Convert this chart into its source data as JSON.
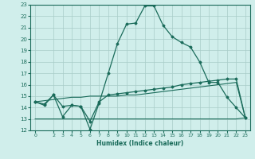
{
  "bg_color": "#d0eeeb",
  "grid_color": "#a8ccc8",
  "line_color": "#1a6b5a",
  "xlabel": "Humidex (Indice chaleur)",
  "xlim": [
    -0.5,
    23.5
  ],
  "ylim": [
    12,
    23
  ],
  "yticks": [
    12,
    13,
    14,
    15,
    16,
    17,
    18,
    19,
    20,
    21,
    22,
    23
  ],
  "xticks": [
    0,
    2,
    3,
    4,
    5,
    6,
    7,
    8,
    9,
    10,
    11,
    12,
    13,
    14,
    15,
    16,
    17,
    18,
    19,
    20,
    21,
    22,
    23
  ],
  "curve1_x": [
    0,
    1,
    2,
    3,
    4,
    5,
    6,
    7,
    8,
    9,
    10,
    11,
    12,
    13,
    14,
    15,
    16,
    17,
    18,
    19,
    20,
    21,
    22,
    23
  ],
  "curve1_y": [
    14.5,
    14.2,
    15.1,
    13.2,
    14.2,
    14.1,
    12.1,
    14.4,
    17.0,
    19.6,
    21.3,
    21.4,
    22.9,
    22.9,
    21.2,
    20.2,
    19.7,
    19.3,
    18.0,
    16.2,
    16.2,
    14.9,
    14.0,
    13.1
  ],
  "curve2_x": [
    0,
    1,
    2,
    3,
    4,
    5,
    6,
    7,
    8,
    9,
    10,
    11,
    12,
    13,
    14,
    15,
    16,
    17,
    18,
    19,
    20,
    21,
    22,
    23
  ],
  "curve2_y": [
    14.5,
    14.3,
    15.1,
    14.1,
    14.2,
    14.1,
    12.8,
    14.5,
    15.1,
    15.2,
    15.3,
    15.4,
    15.5,
    15.6,
    15.7,
    15.8,
    16.0,
    16.1,
    16.2,
    16.3,
    16.4,
    16.5,
    16.5,
    13.1
  ],
  "curve3_x": [
    0,
    1,
    2,
    3,
    4,
    5,
    6,
    7,
    8,
    9,
    10,
    11,
    12,
    13,
    14,
    15,
    16,
    17,
    18,
    19,
    20,
    21,
    22,
    23
  ],
  "curve3_y": [
    14.5,
    14.6,
    14.7,
    14.8,
    14.9,
    14.9,
    15.0,
    15.0,
    15.0,
    15.0,
    15.1,
    15.1,
    15.2,
    15.3,
    15.4,
    15.5,
    15.6,
    15.7,
    15.8,
    15.9,
    16.0,
    16.1,
    16.2,
    13.1
  ],
  "curve4_x": [
    0,
    22,
    23
  ],
  "curve4_y": [
    13.0,
    13.0,
    13.1
  ]
}
